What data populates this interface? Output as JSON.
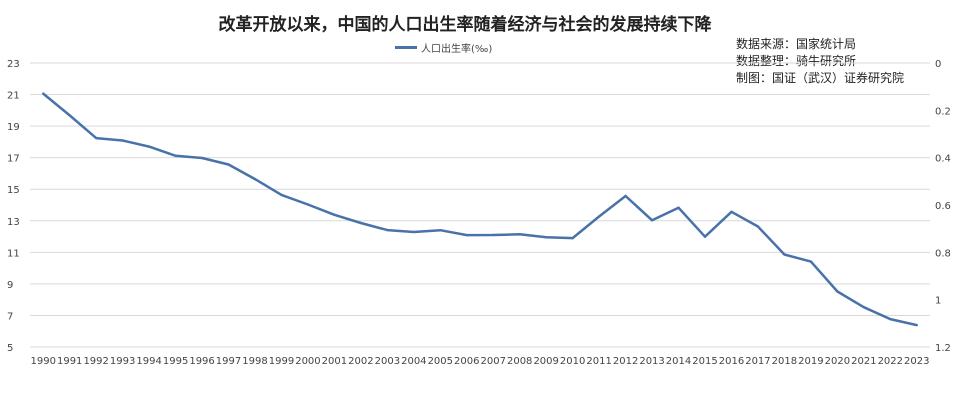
{
  "chart_data": {
    "type": "line",
    "title": "改革开放以来，中国的人口出生率随着经济与社会的发展持续下降",
    "legend_position": "top-center",
    "grid": true,
    "x": [
      "1990",
      "1991",
      "1992",
      "1993",
      "1994",
      "1995",
      "1996",
      "1997",
      "1998",
      "1999",
      "2000",
      "2001",
      "2002",
      "2003",
      "2004",
      "2005",
      "2006",
      "2007",
      "2008",
      "2009",
      "2010",
      "2011",
      "2012",
      "2013",
      "2014",
      "2015",
      "2016",
      "2017",
      "2018",
      "2019",
      "2020",
      "2021",
      "2022",
      "2023"
    ],
    "series": [
      {
        "name": "人口出生率(‰)",
        "color": "#4a72aa",
        "values": [
          21.06,
          19.68,
          18.24,
          18.09,
          17.7,
          17.12,
          16.98,
          16.57,
          15.64,
          14.64,
          14.03,
          13.38,
          12.86,
          12.41,
          12.29,
          12.4,
          12.09,
          12.1,
          12.14,
          11.95,
          11.9,
          13.27,
          14.57,
          13.03,
          13.83,
          11.99,
          13.57,
          12.64,
          10.86,
          10.41,
          8.52,
          7.52,
          6.77,
          6.39
        ]
      }
    ],
    "y_left": {
      "ticks": [
        "23",
        "21",
        "19",
        "17",
        "15",
        "13",
        "11",
        "9",
        "7",
        "5"
      ],
      "ylim": [
        5,
        23
      ]
    },
    "y_right": {
      "ticks": [
        "0",
        "0.2",
        "0.4",
        "0.6",
        "0.8",
        "1",
        "1.2"
      ],
      "ylim": [
        0,
        1.2
      ],
      "inverted": true
    }
  },
  "source_note": {
    "line1": "数据来源：国家统计局",
    "line2": "数据整理：骑牛研究所",
    "line3": "制图：国证（武汉）证券研究院"
  }
}
